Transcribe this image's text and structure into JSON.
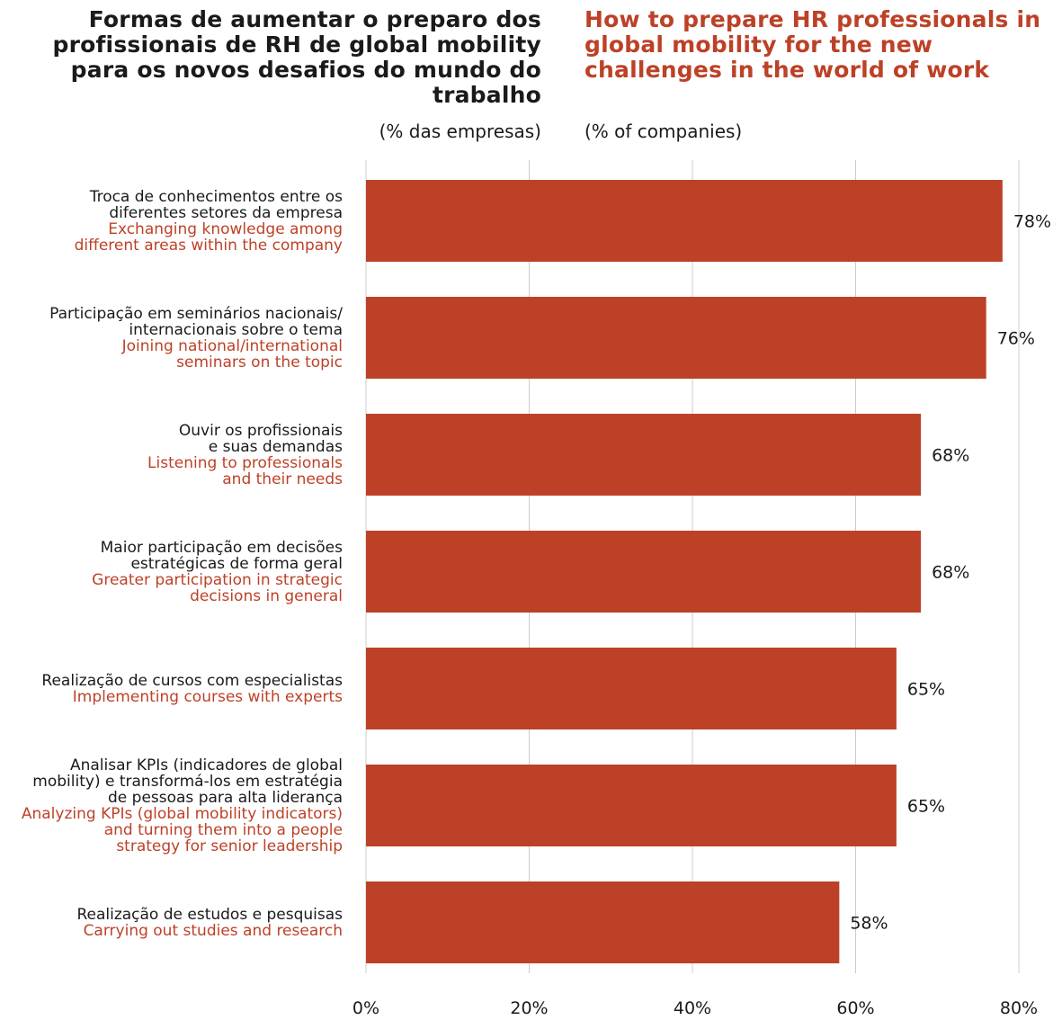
{
  "header": {
    "title_pt": "Formas de aumentar o preparo dos profissionais de RH de global mobility para os novos desafios do mundo do trabalho",
    "title_en": "How to prepare HR professionals in global mobility for the new challenges in the world of work",
    "unit_pt": "(% das empresas)",
    "unit_en": "(% of companies)"
  },
  "colors": {
    "bar": "#bd4127",
    "accent_text": "#bd4127",
    "gridline": "#cccccc",
    "text": "#1a1a1a"
  },
  "chart_data": {
    "type": "bar",
    "orientation": "horizontal",
    "categories": [
      {
        "pt": [
          "Troca de conhecimentos entre os",
          "diferentes setores da empresa"
        ],
        "en": [
          "Exchanging knowledge among",
          "different areas within the company"
        ]
      },
      {
        "pt": [
          "Participação em seminários nacionais/",
          "internacionais sobre o tema"
        ],
        "en": [
          "Joining national/international",
          "seminars on the topic"
        ]
      },
      {
        "pt": [
          "Ouvir os profissionais",
          "e suas demandas"
        ],
        "en": [
          "Listening to professionals",
          "and their needs"
        ]
      },
      {
        "pt": [
          "Maior participação em decisões",
          "estratégicas de forma geral"
        ],
        "en": [
          "Greater participation in strategic",
          "decisions in general"
        ]
      },
      {
        "pt": [
          "Realização de cursos com especialistas"
        ],
        "en": [
          "Implementing courses with experts"
        ]
      },
      {
        "pt": [
          "Analisar KPIs (indicadores de global",
          "mobility) e transformá-los em estratégia",
          "de pessoas para alta liderança"
        ],
        "en": [
          "Analyzing KPIs (global mobility indicators)",
          "and turning them into a people",
          "strategy for senior leadership"
        ]
      },
      {
        "pt": [
          "Realização de estudos e pesquisas"
        ],
        "en": [
          "Carrying out studies and research"
        ]
      }
    ],
    "values": [
      78,
      76,
      68,
      68,
      65,
      65,
      58
    ],
    "value_labels": [
      "78%",
      "76%",
      "68%",
      "68%",
      "65%",
      "65%",
      "58%"
    ],
    "xlim": [
      0,
      80
    ],
    "xticks": [
      0,
      20,
      40,
      60,
      80
    ],
    "xtick_labels": [
      "0%",
      "20%",
      "40%",
      "60%",
      "80%"
    ],
    "grid": true,
    "legend": "none"
  }
}
